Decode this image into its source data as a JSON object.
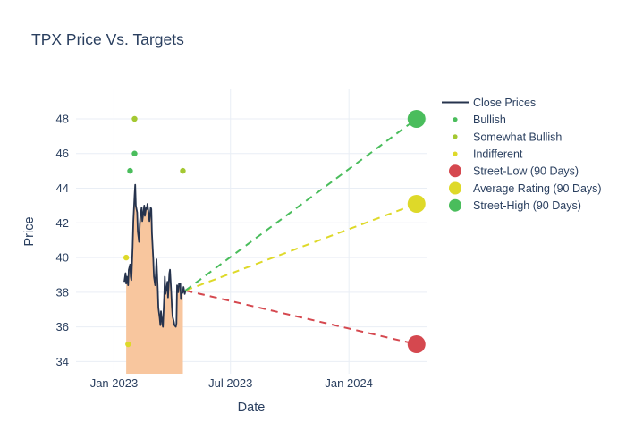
{
  "title": "TPX Price Vs. Targets",
  "theme": {
    "text_color": "#2a3f5f",
    "grid_color": "#e9eef5",
    "background": "#ffffff"
  },
  "chart_data": {
    "type": "line",
    "title": "TPX Price Vs. Targets",
    "xlabel": "Date",
    "ylabel": "Price",
    "grid": true,
    "legend_position": "right-outside-top",
    "x_ticks": [
      {
        "label": "Jan 2023",
        "date": "2023-01-01"
      },
      {
        "label": "Jul 2023",
        "date": "2023-07-01"
      },
      {
        "label": "Jan 2024",
        "date": "2024-01-01"
      }
    ],
    "y_ticks": [
      34,
      36,
      38,
      40,
      42,
      44,
      46,
      48
    ],
    "x_range": [
      "2022-11-03",
      "2024-05-02"
    ],
    "y_range": [
      33.3,
      49.7
    ],
    "close_prices": {
      "name": "Close Prices",
      "color": "#26334d",
      "fill_color": "#f8c69e",
      "fill_from": "2023-01-20",
      "fill_to": "2023-04-18",
      "points": [
        [
          "2023-01-17",
          38.6
        ],
        [
          "2023-01-19",
          39.1
        ],
        [
          "2023-01-20",
          38.5
        ],
        [
          "2023-01-21",
          38.9
        ],
        [
          "2023-01-23",
          38.4
        ],
        [
          "2023-01-24",
          39.3
        ],
        [
          "2023-01-26",
          39.6
        ],
        [
          "2023-01-27",
          38.9
        ],
        [
          "2023-01-28",
          38.7
        ],
        [
          "2023-01-30",
          40.6
        ],
        [
          "2023-01-31",
          42.1
        ],
        [
          "2023-02-02",
          43.6
        ],
        [
          "2023-02-03",
          44.2
        ],
        [
          "2023-02-04",
          43.0
        ],
        [
          "2023-02-06",
          42.6
        ],
        [
          "2023-02-07",
          41.5
        ],
        [
          "2023-02-09",
          40.9
        ],
        [
          "2023-02-10",
          41.9
        ],
        [
          "2023-02-11",
          42.4
        ],
        [
          "2023-02-13",
          42.9
        ],
        [
          "2023-02-14",
          42.1
        ],
        [
          "2023-02-16",
          42.7
        ],
        [
          "2023-02-17",
          43.0
        ],
        [
          "2023-02-18",
          42.4
        ],
        [
          "2023-02-20",
          42.9
        ],
        [
          "2023-02-21",
          42.8
        ],
        [
          "2023-02-22",
          43.1
        ],
        [
          "2023-02-24",
          42.5
        ],
        [
          "2023-02-25",
          42.1
        ],
        [
          "2023-02-27",
          42.9
        ],
        [
          "2023-02-28",
          42.8
        ],
        [
          "2023-03-01",
          41.4
        ],
        [
          "2023-03-03",
          39.9
        ],
        [
          "2023-03-04",
          38.9
        ],
        [
          "2023-03-06",
          38.4
        ],
        [
          "2023-03-07",
          39.1
        ],
        [
          "2023-03-08",
          39.9
        ],
        [
          "2023-03-10",
          38.2
        ],
        [
          "2023-03-11",
          37.1
        ],
        [
          "2023-03-13",
          36.5
        ],
        [
          "2023-03-14",
          36.1
        ],
        [
          "2023-03-15",
          36.9
        ],
        [
          "2023-03-17",
          36.2
        ],
        [
          "2023-03-18",
          36.0
        ],
        [
          "2023-03-20",
          37.7
        ],
        [
          "2023-03-21",
          38.9
        ],
        [
          "2023-03-22",
          37.9
        ],
        [
          "2023-03-24",
          38.3
        ],
        [
          "2023-03-25",
          38.6
        ],
        [
          "2023-03-26",
          37.7
        ],
        [
          "2023-03-28",
          39.1
        ],
        [
          "2023-03-29",
          39.3
        ],
        [
          "2023-03-31",
          38.0
        ],
        [
          "2023-04-01",
          37.2
        ],
        [
          "2023-04-02",
          36.6
        ],
        [
          "2023-04-04",
          36.3
        ],
        [
          "2023-04-05",
          36.1
        ],
        [
          "2023-04-07",
          36.0
        ],
        [
          "2023-04-08",
          36.2
        ],
        [
          "2023-04-09",
          38.4
        ],
        [
          "2023-04-11",
          38.0
        ],
        [
          "2023-04-12",
          38.5
        ],
        [
          "2023-04-14",
          38.5
        ],
        [
          "2023-04-15",
          37.6
        ],
        [
          "2023-04-16",
          37.9
        ],
        [
          "2023-04-18",
          38.0
        ],
        [
          "2023-04-19",
          38.3
        ],
        [
          "2023-04-21",
          37.9
        ],
        [
          "2023-04-22",
          38.1
        ]
      ]
    },
    "ratings": [
      {
        "name": "Bullish",
        "color": "#4abd5c",
        "points": [
          [
            "2023-01-26",
            45
          ],
          [
            "2023-02-02",
            46
          ]
        ]
      },
      {
        "name": "Somewhat Bullish",
        "color": "#a4c832",
        "points": [
          [
            "2023-02-02",
            48
          ],
          [
            "2023-04-18",
            45
          ]
        ]
      },
      {
        "name": "Indifferent",
        "color": "#ded929",
        "points": [
          [
            "2023-01-20",
            40
          ],
          [
            "2023-01-23",
            35
          ]
        ]
      }
    ],
    "projection_origin": [
      "2023-04-22",
      38.1
    ],
    "targets": [
      {
        "name": "Street-Low (90 Days)",
        "color": "#d5484f",
        "date": "2024-04-15",
        "value": 35
      },
      {
        "name": "Average Rating (90 Days)",
        "color": "#ded929",
        "date": "2024-04-15",
        "value": 43.1
      },
      {
        "name": "Street-High (90 Days)",
        "color": "#4abd5c",
        "date": "2024-04-15",
        "value": 48
      }
    ],
    "legend": [
      {
        "label": "Close Prices",
        "swatch": "line",
        "color": "#26334d"
      },
      {
        "label": "Bullish",
        "swatch": "dot-small",
        "color": "#4abd5c"
      },
      {
        "label": "Somewhat Bullish",
        "swatch": "dot-small",
        "color": "#a4c832"
      },
      {
        "label": "Indifferent",
        "swatch": "dot-small",
        "color": "#ded929"
      },
      {
        "label": "Street-Low (90 Days)",
        "swatch": "dot-large",
        "color": "#d5484f"
      },
      {
        "label": "Average Rating (90 Days)",
        "swatch": "dot-large",
        "color": "#ded929"
      },
      {
        "label": "Street-High (90 Days)",
        "swatch": "dot-large",
        "color": "#4abd5c"
      }
    ]
  }
}
